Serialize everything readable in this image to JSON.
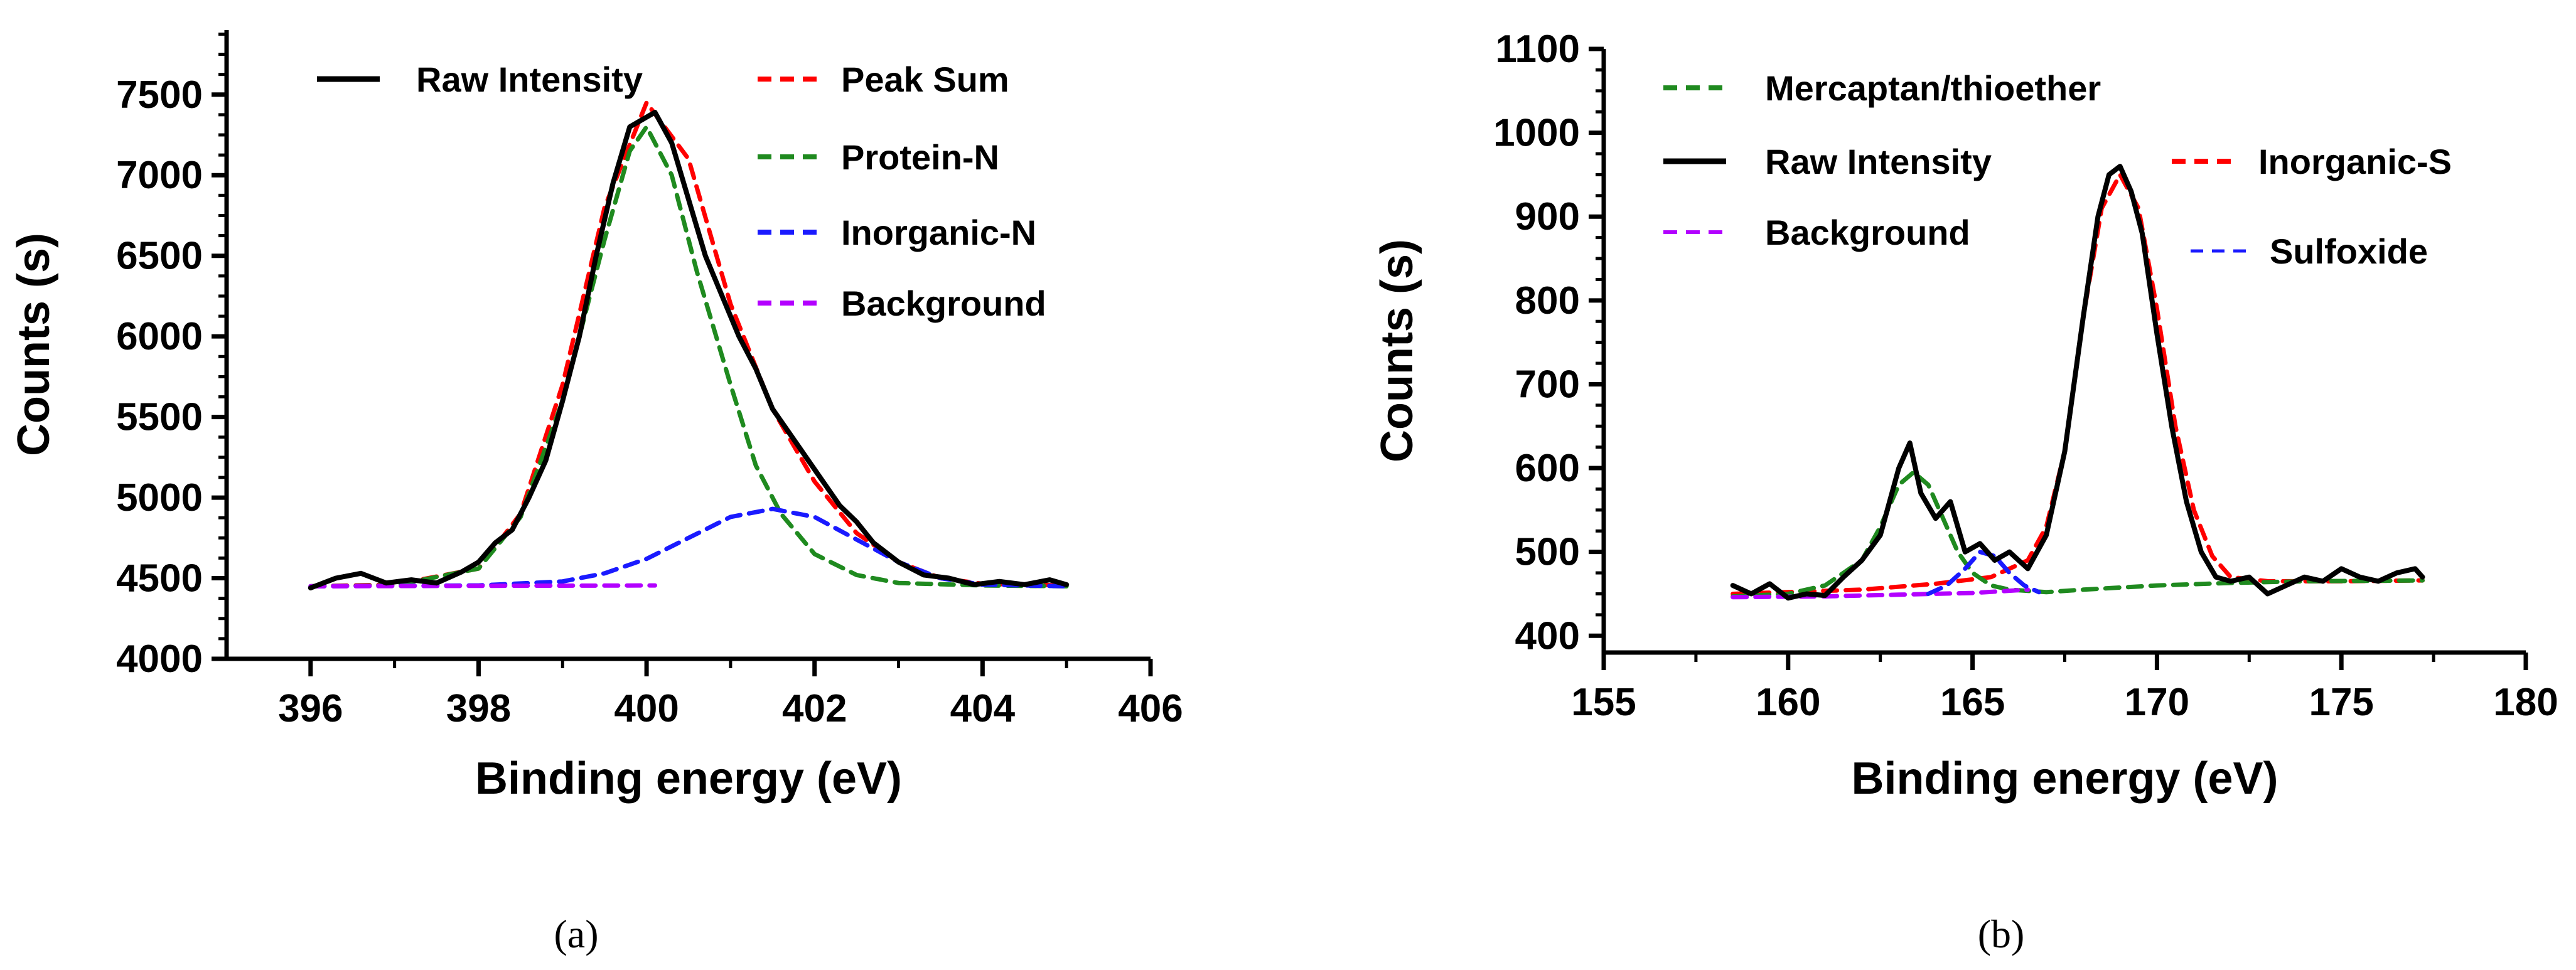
{
  "chart_data": [
    {
      "panel": "(a)",
      "type": "line",
      "xlabel": "Binding energy (eV)",
      "ylabel": "Counts (s)",
      "xlim": [
        395,
        406
      ],
      "ylim": [
        4000,
        7900
      ],
      "xticks": [
        396,
        398,
        400,
        402,
        404,
        406
      ],
      "yticks": [
        4000,
        4500,
        5000,
        5500,
        6000,
        6500,
        7000,
        7500
      ],
      "legend": [
        "Raw Intensity",
        "Peak Sum",
        "Protein-N",
        "Inorganic-N",
        "Background"
      ],
      "series": [
        {
          "name": "Raw Intensity",
          "color": "#000000",
          "style": "solid",
          "x": [
            396.0,
            396.3,
            396.6,
            396.9,
            397.2,
            397.5,
            397.8,
            398.0,
            398.2,
            398.4,
            398.6,
            398.8,
            399.0,
            399.2,
            399.4,
            399.6,
            399.8,
            400.0,
            400.1,
            400.3,
            400.5,
            400.7,
            400.9,
            401.1,
            401.3,
            401.5,
            401.7,
            401.9,
            402.1,
            402.3,
            402.5,
            402.7,
            403.0,
            403.3,
            403.6,
            403.9,
            404.2,
            404.5,
            404.8,
            405.0
          ],
          "y": [
            4440,
            4500,
            4530,
            4470,
            4490,
            4470,
            4540,
            4600,
            4720,
            4800,
            5000,
            5230,
            5600,
            6000,
            6500,
            6950,
            7300,
            7360,
            7390,
            7200,
            6850,
            6500,
            6250,
            6000,
            5800,
            5550,
            5400,
            5250,
            5100,
            4950,
            4850,
            4720,
            4600,
            4520,
            4500,
            4460,
            4480,
            4460,
            4490,
            4460
          ]
        },
        {
          "name": "Peak Sum",
          "color": "#ff0000",
          "style": "dashed",
          "x": [
            396.0,
            397.0,
            398.0,
            398.5,
            399.0,
            399.5,
            400.0,
            400.5,
            401.0,
            401.5,
            402.0,
            402.5,
            403.0,
            403.5,
            404.0,
            405.0
          ],
          "y": [
            4450,
            4460,
            4560,
            4900,
            5700,
            6800,
            7450,
            7100,
            6200,
            5550,
            5100,
            4780,
            4600,
            4500,
            4465,
            4455
          ]
        },
        {
          "name": "Protein-N",
          "color": "#1f8a1f",
          "style": "dashed",
          "x": [
            396.0,
            397.0,
            398.0,
            398.5,
            399.0,
            399.5,
            399.8,
            400.0,
            400.3,
            400.6,
            401.0,
            401.3,
            401.6,
            402.0,
            402.5,
            403.0,
            404.0,
            405.0
          ],
          "y": [
            4450,
            4455,
            4560,
            4880,
            5600,
            6600,
            7150,
            7300,
            7000,
            6400,
            5700,
            5200,
            4900,
            4650,
            4520,
            4470,
            4455,
            4450
          ]
        },
        {
          "name": "Inorganic-N",
          "color": "#1a1aff",
          "style": "dashed",
          "x": [
            396.0,
            398.0,
            399.0,
            399.5,
            400.0,
            400.5,
            401.0,
            401.5,
            402.0,
            402.5,
            403.0,
            403.5,
            404.0,
            405.0
          ],
          "y": [
            4450,
            4455,
            4480,
            4530,
            4620,
            4750,
            4880,
            4930,
            4880,
            4740,
            4600,
            4500,
            4460,
            4450
          ]
        },
        {
          "name": "Background",
          "color": "#b300ff",
          "style": "dashed",
          "x": [
            396.0,
            400.1
          ],
          "y": [
            4450,
            4455
          ]
        }
      ]
    },
    {
      "panel": "(b)",
      "type": "line",
      "xlabel": "Binding energy (eV)",
      "ylabel": "Counts (s)",
      "xlim": [
        155,
        180
      ],
      "ylim": [
        380,
        1100
      ],
      "xticks": [
        155,
        160,
        165,
        170,
        175,
        180
      ],
      "yticks": [
        400,
        500,
        600,
        700,
        800,
        900,
        1000,
        1100
      ],
      "legend": [
        "Mercaptan/thioether",
        "Raw Intensity",
        "Inorganic-S",
        "Background",
        "Sulfoxide"
      ],
      "series": [
        {
          "name": "Raw Intensity",
          "color": "#000000",
          "style": "solid",
          "x": [
            158.5,
            159.0,
            159.5,
            160.0,
            160.5,
            161.0,
            161.5,
            162.0,
            162.5,
            163.0,
            163.3,
            163.6,
            164.0,
            164.4,
            164.8,
            165.2,
            165.6,
            166.0,
            166.5,
            167.0,
            167.5,
            168.0,
            168.4,
            168.7,
            169.0,
            169.3,
            169.6,
            170.0,
            170.4,
            170.8,
            171.2,
            171.6,
            172.0,
            172.5,
            173.0,
            173.5,
            174.0,
            174.5,
            175.0,
            175.5,
            176.0,
            176.5,
            177.0,
            177.2
          ],
          "y": [
            460,
            450,
            462,
            445,
            450,
            448,
            470,
            490,
            520,
            600,
            630,
            570,
            540,
            560,
            500,
            510,
            490,
            500,
            480,
            520,
            620,
            780,
            900,
            950,
            960,
            930,
            880,
            760,
            650,
            560,
            500,
            470,
            465,
            470,
            450,
            460,
            470,
            465,
            480,
            470,
            465,
            475,
            480,
            470
          ]
        },
        {
          "name": "Inorganic-S",
          "color": "#ff0000",
          "style": "dashed",
          "x": [
            158.5,
            162.0,
            164.0,
            165.5,
            166.5,
            167.0,
            167.5,
            168.0,
            168.5,
            169.0,
            169.5,
            170.0,
            170.5,
            171.0,
            171.5,
            172.0,
            173.0,
            175.0,
            177.2
          ],
          "y": [
            450,
            455,
            462,
            470,
            490,
            530,
            620,
            780,
            910,
            950,
            910,
            790,
            650,
            550,
            495,
            470,
            465,
            465,
            466
          ]
        },
        {
          "name": "Mercaptan/thioether",
          "color": "#1f8a1f",
          "style": "dashed",
          "x": [
            158.5,
            160.0,
            161.0,
            162.0,
            162.5,
            163.0,
            163.4,
            163.8,
            164.2,
            164.6,
            165.0,
            165.5,
            166.0,
            167.0,
            168.0,
            170.0,
            172.0,
            174.0,
            177.2
          ],
          "y": [
            447,
            450,
            460,
            490,
            530,
            580,
            595,
            580,
            540,
            500,
            475,
            460,
            455,
            452,
            455,
            460,
            463,
            465,
            466
          ]
        },
        {
          "name": "Background",
          "color": "#b300ff",
          "style": "dashed",
          "x": [
            158.5,
            161.0,
            163.0,
            165.0,
            166.5
          ],
          "y": [
            446,
            447,
            449,
            451,
            455
          ]
        },
        {
          "name": "Sulfoxide",
          "color": "#1a1aff",
          "style": "dashed",
          "x": [
            163.8,
            164.3,
            164.8,
            165.2,
            165.6,
            166.0,
            166.4,
            166.8
          ],
          "y": [
            450,
            460,
            480,
            500,
            495,
            475,
            460,
            452
          ]
        }
      ]
    }
  ],
  "captions": {
    "a": "(a)",
    "b": "(b)"
  }
}
